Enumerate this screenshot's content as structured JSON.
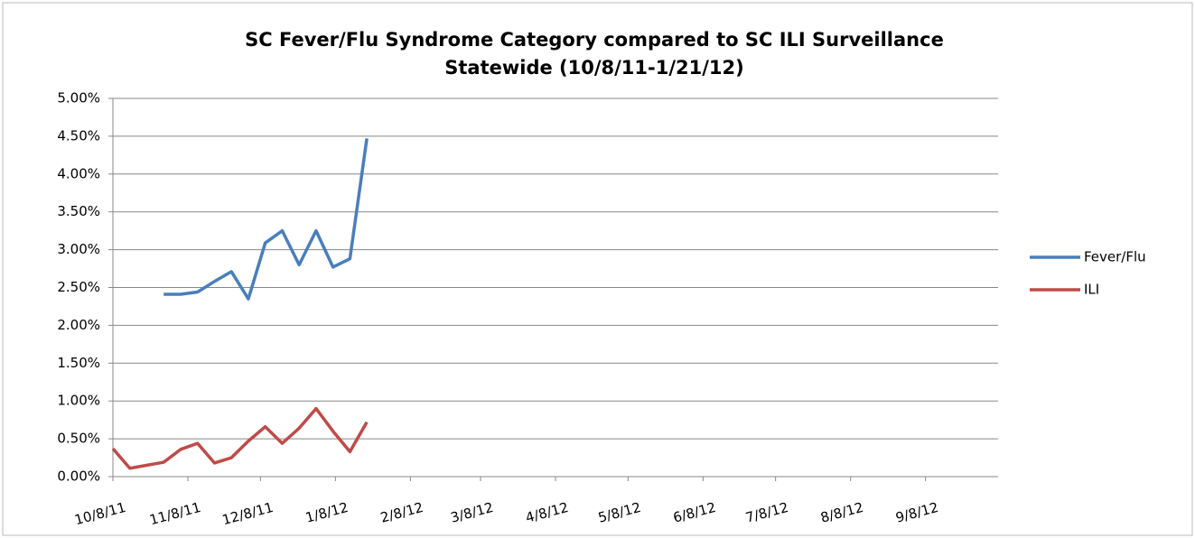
{
  "chart_data": {
    "type": "line",
    "title": [
      "SC Fever/Flu Syndrome Category compared to SC ILI Surveillance",
      "Statewide (10/8/11-1/21/12)"
    ],
    "x": [
      "2011-10-08",
      "2011-10-15",
      "2011-10-29",
      "2011-11-05",
      "2011-11-12",
      "2011-11-19",
      "2011-11-26",
      "2011-12-03",
      "2011-12-10",
      "2011-12-17",
      "2011-12-24",
      "2011-12-31",
      "2012-01-07",
      "2012-01-14",
      "2012-01-21"
    ],
    "series": [
      {
        "name": "Fever/Flu",
        "color": "#4a7ebb",
        "values": [
          null,
          null,
          2.41,
          2.41,
          2.44,
          2.58,
          2.71,
          2.35,
          3.09,
          3.25,
          2.8,
          3.25,
          2.77,
          2.88,
          4.47
        ]
      },
      {
        "name": "ILI",
        "color": "#be4b48",
        "values": [
          0.37,
          0.11,
          0.19,
          0.36,
          0.44,
          0.18,
          0.25,
          0.47,
          0.66,
          0.44,
          0.64,
          0.9,
          0.6,
          0.33,
          0.72
        ]
      }
    ],
    "xlim": [
      "2011-10-08",
      "2012-10-08"
    ],
    "xticks": [
      {
        "value": "2011-10-08",
        "label": "10/8/11"
      },
      {
        "value": "2011-11-08",
        "label": "11/8/11"
      },
      {
        "value": "2011-12-08",
        "label": "12/8/11"
      },
      {
        "value": "2012-01-08",
        "label": "1/8/12"
      },
      {
        "value": "2012-02-08",
        "label": "2/8/12"
      },
      {
        "value": "2012-03-08",
        "label": "3/8/12"
      },
      {
        "value": "2012-04-08",
        "label": "4/8/12"
      },
      {
        "value": "2012-05-08",
        "label": "5/8/12"
      },
      {
        "value": "2012-06-08",
        "label": "6/8/12"
      },
      {
        "value": "2012-07-08",
        "label": "7/8/12"
      },
      {
        "value": "2012-08-08",
        "label": "8/8/12"
      },
      {
        "value": "2012-09-08",
        "label": "9/8/12"
      }
    ],
    "ylim": [
      0,
      5
    ],
    "yticks": [
      {
        "value": 0,
        "label": "0.00%"
      },
      {
        "value": 0.5,
        "label": "0.50%"
      },
      {
        "value": 1,
        "label": "1.00%"
      },
      {
        "value": 1.5,
        "label": "1.50%"
      },
      {
        "value": 2,
        "label": "2.00%"
      },
      {
        "value": 2.5,
        "label": "2.50%"
      },
      {
        "value": 3,
        "label": "3.00%"
      },
      {
        "value": 3.5,
        "label": "3.50%"
      },
      {
        "value": 4,
        "label": "4.00%"
      },
      {
        "value": 4.5,
        "label": "4.50%"
      },
      {
        "value": 5,
        "label": "5.00%"
      }
    ],
    "grid": true,
    "legend": "right"
  }
}
